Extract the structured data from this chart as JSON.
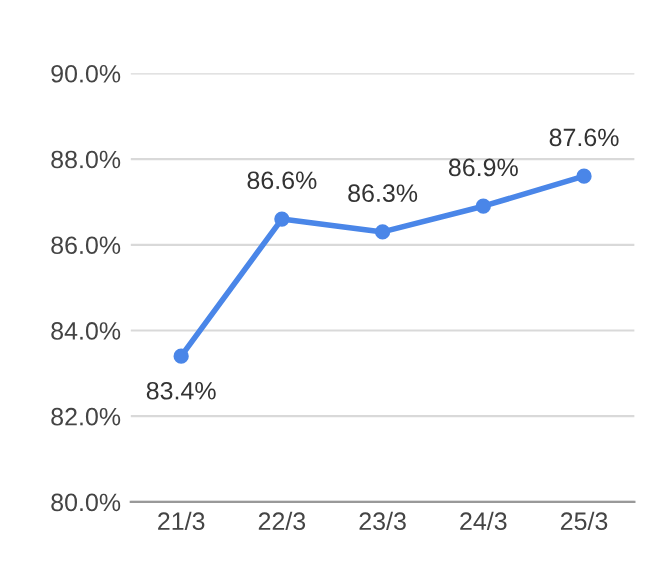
{
  "chart_data": {
    "type": "line",
    "categories": [
      "21/3",
      "22/3",
      "23/3",
      "24/3",
      "25/3"
    ],
    "series": [
      {
        "color": "#4a86e8",
        "values": [
          83.4,
          86.6,
          86.3,
          86.9,
          87.6
        ],
        "value_labels": [
          "83.4%",
          "86.6%",
          "86.3%",
          "86.9%",
          "87.6%"
        ]
      }
    ],
    "ylim": [
      80,
      90
    ],
    "yticks": [
      {
        "value": 80,
        "label": "80.0%"
      },
      {
        "value": 82,
        "label": "82.0%"
      },
      {
        "value": 84,
        "label": "84.0%"
      },
      {
        "value": 86,
        "label": "86.0%"
      },
      {
        "value": 88,
        "label": "88.0%"
      },
      {
        "value": 90,
        "label": "90.0%"
      }
    ],
    "grid": "y",
    "marker": "circle",
    "line_style": "solid"
  }
}
